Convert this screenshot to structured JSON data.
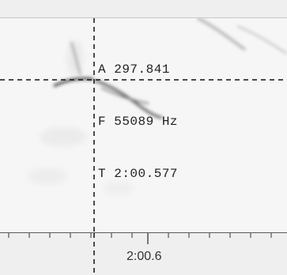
{
  "cursor_readout": {
    "amplitude_label": "A",
    "amplitude_value": "297.841",
    "frequency_label": "F",
    "frequency_value": "55089 Hz",
    "time_label": "T",
    "time_value": "2:00.577"
  },
  "time_axis": {
    "tick_label": "2:00.6"
  },
  "colors": {
    "plot_background": "#f5f5f5",
    "crosshair": "#111111",
    "axis_background": "#efefef"
  }
}
